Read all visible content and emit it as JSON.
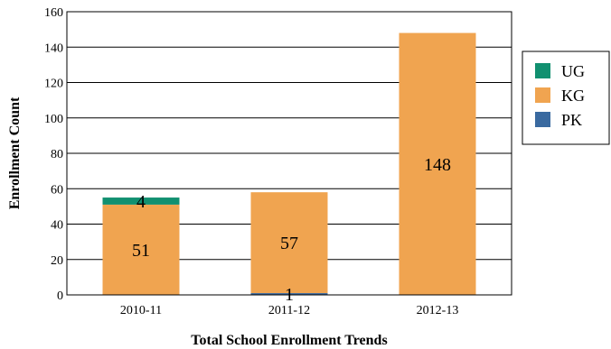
{
  "chart_data": {
    "type": "bar",
    "stacked": true,
    "categories": [
      "2010-11",
      "2011-12",
      "2012-13"
    ],
    "series": [
      {
        "name": "PK",
        "color": "#3a6aa0",
        "values": [
          0,
          1,
          0
        ]
      },
      {
        "name": "KG",
        "color": "#f0a450",
        "values": [
          51,
          57,
          148
        ]
      },
      {
        "name": "UG",
        "color": "#119070",
        "values": [
          4,
          0,
          0
        ]
      }
    ],
    "data_labels": [
      {
        "category": "2010-11",
        "series": "UG",
        "text": "4"
      },
      {
        "category": "2010-11",
        "series": "KG",
        "text": "51"
      },
      {
        "category": "2011-12",
        "series": "KG",
        "text": "57"
      },
      {
        "category": "2011-12",
        "series": "PK",
        "text": "1"
      },
      {
        "category": "2012-13",
        "series": "KG",
        "text": "148"
      }
    ],
    "legend_order": [
      "UG",
      "KG",
      "PK"
    ],
    "legend_position": "right",
    "xlabel": "Total School Enrollment Trends",
    "ylabel": "Enrollment Count",
    "ylim": [
      0,
      160
    ],
    "yticks": [
      0,
      20,
      40,
      60,
      80,
      100,
      120,
      140,
      160
    ],
    "grid": true
  }
}
